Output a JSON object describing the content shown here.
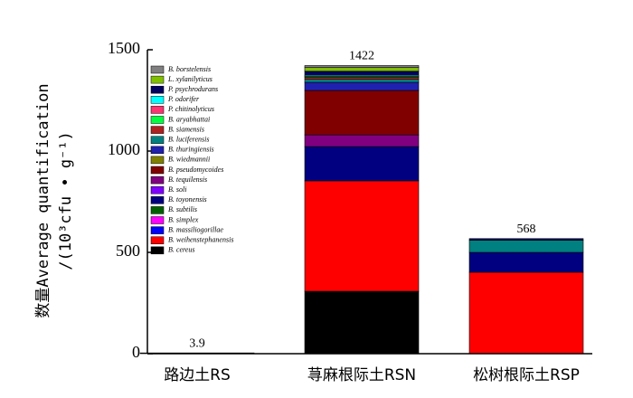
{
  "chart_data": {
    "type": "stacked_bar",
    "ylabel": [
      "数量Average quantification",
      "/(10³cfu • g⁻¹)"
    ],
    "categories": [
      "路边土RS",
      "荨麻根际土RSN",
      "松树根际土RSP"
    ],
    "ylim": [
      0,
      1500
    ],
    "yticks": [
      0,
      500,
      1000,
      1500
    ],
    "totals": [
      3.9,
      1422,
      568
    ],
    "series": [
      {
        "name": "B. cereus",
        "color": "#000000",
        "values": [
          3.9,
          308,
          0
        ]
      },
      {
        "name": "B. weihenstephanensis",
        "color": "#ff0000",
        "values": [
          0,
          545,
          402
        ]
      },
      {
        "name": "B. massiliogorillae",
        "color": "#0000ff",
        "values": [
          0,
          0,
          0
        ]
      },
      {
        "name": "B. simplex",
        "color": "#ff00ff",
        "values": [
          0,
          0,
          0
        ]
      },
      {
        "name": "B. subtilis",
        "color": "#006000",
        "values": [
          0,
          0,
          0
        ]
      },
      {
        "name": "B. toyonensis",
        "color": "#000080",
        "values": [
          0,
          169,
          98
        ]
      },
      {
        "name": "B. soli",
        "color": "#7f00ff",
        "values": [
          0,
          0,
          0
        ]
      },
      {
        "name": "B. tequilensis",
        "color": "#800080",
        "values": [
          0,
          58,
          0
        ]
      },
      {
        "name": "B. pseudomycoides",
        "color": "#800000",
        "values": [
          0,
          219,
          0
        ]
      },
      {
        "name": "B. wiedmannii",
        "color": "#808000",
        "values": [
          0,
          0,
          0
        ]
      },
      {
        "name": "B. thuringiensis",
        "color": "#2020b0",
        "values": [
          0,
          40,
          0
        ]
      },
      {
        "name": "B. luciferensis",
        "color": "#008080",
        "values": [
          0,
          15,
          60
        ]
      },
      {
        "name": "B. siamensis",
        "color": "#b02020",
        "values": [
          0,
          10,
          0
        ]
      },
      {
        "name": "B. aryabhattai",
        "color": "#00ff40",
        "values": [
          0,
          5,
          0
        ]
      },
      {
        "name": "P. chitinolyticus",
        "color": "#ff3370",
        "values": [
          0,
          0,
          0
        ]
      },
      {
        "name": "P. odorifer",
        "color": "#00ffff",
        "values": [
          0,
          5,
          0
        ]
      },
      {
        "name": "P. psychrodurans",
        "color": "#000060",
        "values": [
          0,
          20,
          8
        ]
      },
      {
        "name": "L. xylanilyticus",
        "color": "#80c000",
        "values": [
          0,
          18,
          0
        ]
      },
      {
        "name": "B. borstelensis",
        "color": "#808080",
        "values": [
          0,
          10,
          0
        ]
      }
    ]
  }
}
